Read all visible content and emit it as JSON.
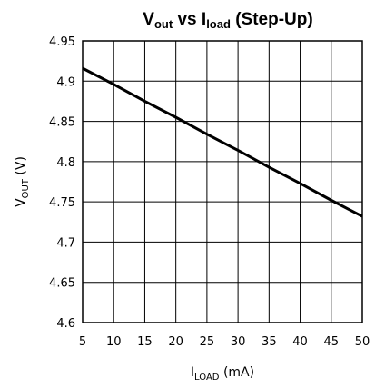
{
  "chart_data": {
    "type": "line",
    "title": {
      "v": "V",
      "v_sub": "out",
      "mid": " vs I",
      "i_sub": "load",
      "end": " (Step-Up)"
    },
    "xlabel": {
      "main": "I",
      "sub": "LOAD",
      "unit": " (mA)"
    },
    "ylabel": {
      "main": "V",
      "sub": "OUT",
      "unit": " (V)"
    },
    "xlim": [
      5,
      50
    ],
    "ylim": [
      4.6,
      4.95
    ],
    "xticks": [
      5,
      10,
      15,
      20,
      25,
      30,
      35,
      40,
      45,
      50
    ],
    "yticks": [
      4.6,
      4.65,
      4.7,
      4.75,
      4.8,
      4.85,
      4.9,
      4.95
    ],
    "yticklabels": [
      "4.6",
      "4.65",
      "4.7",
      "4.75",
      "4.8",
      "4.85",
      "4.9",
      "4.95"
    ],
    "grid": true,
    "series": [
      {
        "x": [
          5,
          10,
          15,
          20,
          25,
          30,
          35,
          40,
          45,
          50
        ],
        "y": [
          4.916,
          4.896,
          4.875,
          4.855,
          4.834,
          4.814,
          4.793,
          4.773,
          4.752,
          4.732
        ]
      }
    ],
    "line_color": "#000000"
  }
}
